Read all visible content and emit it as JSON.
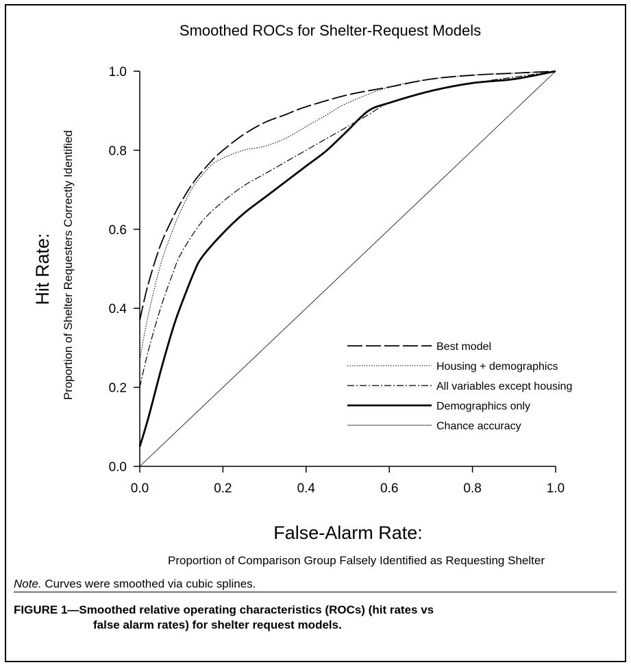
{
  "chart_data": {
    "type": "line",
    "title": "Smoothed ROCs for Shelter-Request Models",
    "xlabel": "False-Alarm Rate:",
    "xlabel_sub": "Proportion of Comparison Group Falsely Identified as Requesting Shelter",
    "ylabel": "Hit Rate:",
    "ylabel_sub": "Proportion of Shelter Requesters Correctly Identified",
    "xlim": [
      0,
      1
    ],
    "ylim": [
      0,
      1
    ],
    "xticks": [
      "0.0",
      "0.2",
      "0.4",
      "0.6",
      "0.8",
      "1.0"
    ],
    "yticks": [
      "0.0",
      "0.2",
      "0.4",
      "0.6",
      "0.8",
      "1.0"
    ],
    "grid": false,
    "legend_position": "bottom-right",
    "series": [
      {
        "name": "Best model",
        "style": "long-dash",
        "x": [
          0,
          0.02,
          0.05,
          0.08,
          0.1,
          0.13,
          0.17,
          0.2,
          0.25,
          0.3,
          0.35,
          0.4,
          0.5,
          0.6,
          0.7,
          0.8,
          0.9,
          1.0
        ],
        "y": [
          0.37,
          0.46,
          0.56,
          0.63,
          0.67,
          0.72,
          0.77,
          0.8,
          0.84,
          0.87,
          0.89,
          0.91,
          0.94,
          0.96,
          0.98,
          0.99,
          0.995,
          1.0
        ]
      },
      {
        "name": "Housing + demographics",
        "style": "dotted",
        "x": [
          0,
          0.02,
          0.05,
          0.08,
          0.1,
          0.13,
          0.17,
          0.2,
          0.25,
          0.3,
          0.35,
          0.4,
          0.45,
          0.5,
          0.6,
          0.7,
          0.8,
          0.9,
          1.0
        ],
        "y": [
          0.27,
          0.38,
          0.51,
          0.6,
          0.65,
          0.71,
          0.76,
          0.78,
          0.8,
          0.81,
          0.83,
          0.86,
          0.89,
          0.92,
          0.96,
          0.98,
          0.99,
          0.995,
          1.0
        ]
      },
      {
        "name": "All variables except housing",
        "style": "dash-dot",
        "x": [
          0,
          0.02,
          0.05,
          0.08,
          0.1,
          0.15,
          0.2,
          0.25,
          0.3,
          0.35,
          0.4,
          0.45,
          0.5,
          0.55,
          0.6,
          0.7,
          0.8,
          0.9,
          1.0
        ],
        "y": [
          0.2,
          0.29,
          0.4,
          0.49,
          0.54,
          0.62,
          0.67,
          0.71,
          0.74,
          0.77,
          0.8,
          0.83,
          0.86,
          0.89,
          0.92,
          0.95,
          0.97,
          0.985,
          1.0
        ]
      },
      {
        "name": "Demographics only",
        "style": "solid-thick",
        "x": [
          0,
          0.02,
          0.05,
          0.08,
          0.1,
          0.13,
          0.15,
          0.2,
          0.25,
          0.3,
          0.35,
          0.4,
          0.45,
          0.5,
          0.55,
          0.6,
          0.7,
          0.8,
          0.9,
          1.0
        ],
        "y": [
          0.05,
          0.12,
          0.24,
          0.35,
          0.41,
          0.49,
          0.53,
          0.59,
          0.64,
          0.68,
          0.72,
          0.76,
          0.8,
          0.85,
          0.9,
          0.92,
          0.95,
          0.97,
          0.98,
          1.0
        ]
      },
      {
        "name": "Chance accuracy",
        "style": "solid-thin",
        "x": [
          0,
          1
        ],
        "y": [
          0,
          1
        ]
      }
    ]
  },
  "note_prefix": "Note.",
  "note_text": " Curves were smoothed via cubic splines.",
  "caption": {
    "line1": "FIGURE 1—Smoothed relative operating characteristics (ROCs) (hit rates vs",
    "line2": "false alarm rates) for shelter request models."
  }
}
